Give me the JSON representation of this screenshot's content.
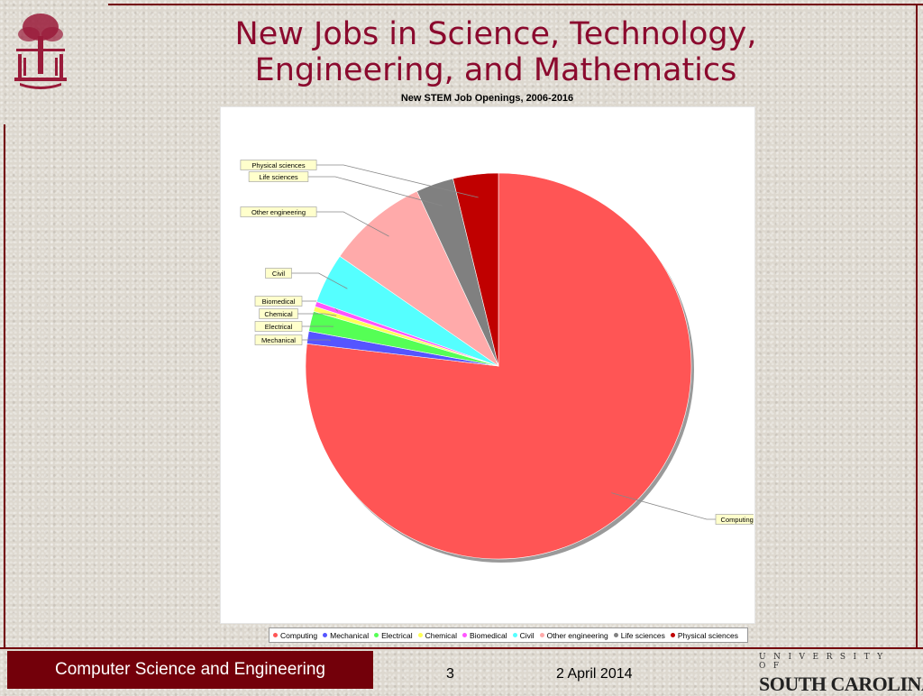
{
  "slide": {
    "title_line1": "New Jobs in Science, Technology,",
    "title_line2": "Engineering, and Mathematics"
  },
  "footer": {
    "department": "Computer Science and Engineering",
    "page_number": "3",
    "date": "2 April 2014",
    "university_top": "UNIVERSITY OF",
    "university_name": "SOUTH CAROLINA."
  },
  "colors": {
    "brand": "#73000a",
    "title": "#8b0a2e"
  },
  "chart_data": {
    "type": "pie",
    "title": "New STEM Job Openings, 2006-2016",
    "legend_placement": "bottom",
    "slices": [
      {
        "label": "Computing",
        "value": 73.0,
        "color": "#ff5555"
      },
      {
        "label": "Mechanical",
        "value": 1.0,
        "color": "#5555ff"
      },
      {
        "label": "Electrical",
        "value": 1.6,
        "color": "#55ff55"
      },
      {
        "label": "Chemical",
        "value": 0.4,
        "color": "#ffff55"
      },
      {
        "label": "Biomedical",
        "value": 0.4,
        "color": "#ff55ff"
      },
      {
        "label": "Civil",
        "value": 4.0,
        "color": "#55ffff"
      },
      {
        "label": "Other engineering",
        "value": 8.0,
        "color": "#ffaaaa"
      },
      {
        "label": "Life sciences",
        "value": 3.0,
        "color": "#808080"
      },
      {
        "label": "Physical sciences",
        "value": 3.6,
        "color": "#c00000"
      }
    ]
  }
}
